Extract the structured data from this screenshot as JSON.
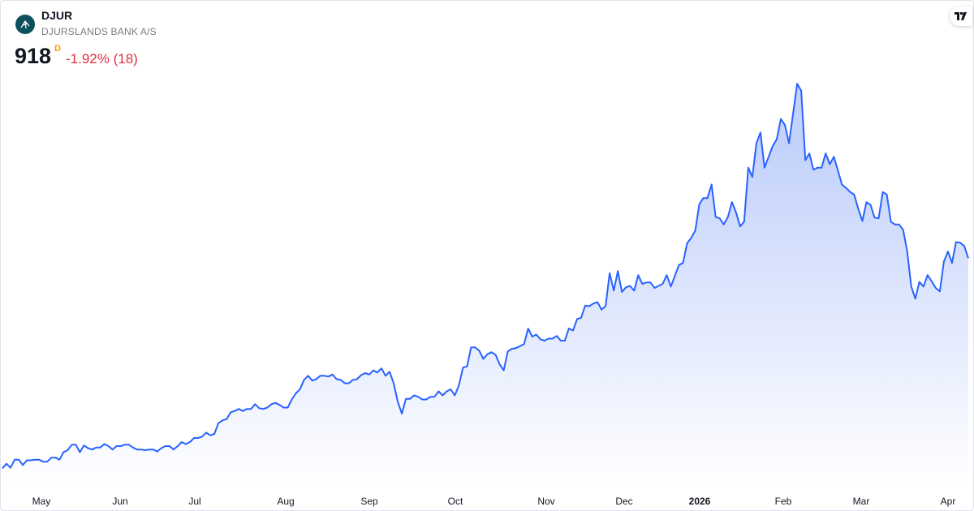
{
  "header": {
    "ticker": "DJUR",
    "company_name": "DJURSLANDS BANK A/S",
    "price": "918",
    "period": "D",
    "change": "-1.92% (18)"
  },
  "icons": {
    "logo": "djurslands-bank-logo",
    "brand": "tradingview-logo"
  },
  "colors": {
    "line": "#2962ff",
    "fill_top": "#c3d2fb",
    "fill_bottom": "#ffffff",
    "negative": "#e03040",
    "period": "#ff9800"
  },
  "chart_data": {
    "type": "area",
    "title": "",
    "xlabel": "",
    "ylabel": "",
    "ylim": [
      580,
      1300
    ],
    "grid": false,
    "x_ticks": [
      {
        "label": "May",
        "bold": false
      },
      {
        "label": "Jun",
        "bold": false
      },
      {
        "label": "Jul",
        "bold": false
      },
      {
        "label": "Aug",
        "bold": false
      },
      {
        "label": "Sep",
        "bold": false
      },
      {
        "label": "Oct",
        "bold": false
      },
      {
        "label": "Nov",
        "bold": false
      },
      {
        "label": "Dec",
        "bold": false
      },
      {
        "label": "2026",
        "bold": true
      },
      {
        "label": "Feb",
        "bold": false
      },
      {
        "label": "Mar",
        "bold": false
      },
      {
        "label": "Apr",
        "bold": false
      }
    ],
    "values": [
      607,
      614,
      608,
      620,
      620,
      612,
      619,
      619,
      620,
      620,
      617,
      617,
      623,
      623,
      620,
      631,
      634,
      642,
      642,
      631,
      641,
      637,
      635,
      638,
      638,
      643,
      640,
      635,
      640,
      640,
      642,
      642,
      638,
      635,
      635,
      634,
      635,
      635,
      632,
      637,
      640,
      640,
      635,
      640,
      646,
      643,
      646,
      652,
      652,
      654,
      660,
      656,
      658,
      674,
      678,
      680,
      690,
      692,
      695,
      692,
      695,
      695,
      702,
      696,
      695,
      697,
      702,
      704,
      701,
      697,
      697,
      709,
      718,
      724,
      738,
      744,
      737,
      739,
      744,
      744,
      743,
      746,
      739,
      738,
      733,
      733,
      738,
      739,
      745,
      748,
      746,
      752,
      749,
      755,
      744,
      750,
      733,
      706,
      688,
      710,
      710,
      715,
      713,
      709,
      709,
      713,
      713,
      721,
      715,
      721,
      724,
      715,
      730,
      756,
      758,
      786,
      786,
      781,
      769,
      776,
      779,
      775,
      761,
      752,
      780,
      784,
      785,
      788,
      791,
      814,
      802,
      805,
      798,
      796,
      799,
      799,
      803,
      796,
      796,
      814,
      811,
      828,
      830,
      848,
      847,
      851,
      853,
      842,
      847,
      896,
      870,
      899,
      868,
      875,
      877,
      870,
      893,
      880,
      882,
      882,
      874,
      877,
      880,
      893,
      876,
      892,
      908,
      911,
      940,
      948,
      959,
      998,
      1007,
      1007,
      1027,
      979,
      977,
      968,
      979,
      1001,
      986,
      965,
      972,
      1052,
      1038,
      1088,
      1104,
      1052,
      1068,
      1084,
      1094,
      1124,
      1115,
      1088,
      1132,
      1176,
      1166,
      1063,
      1073,
      1049,
      1052,
      1052,
      1073,
      1057,
      1068,
      1048,
      1027,
      1022,
      1016,
      1012,
      991,
      973,
      1001,
      997,
      978,
      977,
      1016,
      1012,
      972,
      968,
      968,
      960,
      928,
      876,
      858,
      883,
      876,
      893,
      884,
      874,
      869,
      913,
      928,
      911,
      942,
      941,
      936,
      918
    ]
  }
}
